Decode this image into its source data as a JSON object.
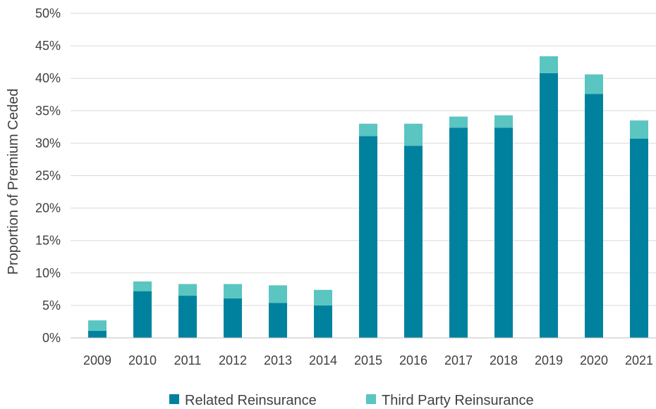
{
  "chart_data": {
    "type": "bar",
    "stacked": true,
    "categories": [
      "2009",
      "2010",
      "2011",
      "2012",
      "2013",
      "2014",
      "2015",
      "2016",
      "2017",
      "2018",
      "2019",
      "2020",
      "2021"
    ],
    "series": [
      {
        "name": "Related Reinsurance",
        "color": "#00829f",
        "values": [
          1.1,
          7.2,
          6.5,
          6.1,
          5.4,
          5.0,
          31.1,
          29.6,
          32.4,
          32.4,
          40.8,
          37.6,
          30.7
        ]
      },
      {
        "name": "Third Party Reinsurance",
        "color": "#5ac5c1",
        "values": [
          1.6,
          1.5,
          1.8,
          2.2,
          2.7,
          2.4,
          1.9,
          3.4,
          1.7,
          1.9,
          2.6,
          3.0,
          2.8
        ]
      }
    ],
    "ylabel": "Proportion of Premium Ceded",
    "ylim": [
      0,
      50
    ],
    "y_ticks": [
      "0%",
      "5%",
      "10%",
      "15%",
      "20%",
      "25%",
      "30%",
      "35%",
      "40%",
      "45%",
      "50%"
    ],
    "grid": "horizontal",
    "legend_position": "bottom"
  }
}
